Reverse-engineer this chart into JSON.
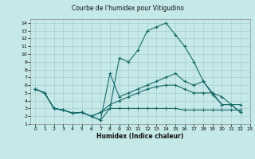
{
  "title": "Courbe de l'humidex pour Vitigudino",
  "xlabel": "Humidex (Indice chaleur)",
  "xlim": [
    -0.5,
    23
  ],
  "ylim": [
    1,
    14.5
  ],
  "background_color": "#c5e8e8",
  "grid_color": "#aacece",
  "line_color": "#1a6b6b",
  "xtick_labels": [
    "0",
    "1",
    "2",
    "3",
    "4",
    "5",
    "6",
    "7",
    "8",
    "9",
    "10",
    "11",
    "12",
    "13",
    "14",
    "15",
    "16",
    "17",
    "18",
    "19",
    "20",
    "21",
    "22",
    "23"
  ],
  "ytick_labels": [
    "1",
    "2",
    "3",
    "4",
    "5",
    "6",
    "7",
    "8",
    "9",
    "10",
    "11",
    "12",
    "13",
    "14"
  ],
  "series": [
    [
      5.5,
      5.0,
      3.0,
      2.8,
      2.4,
      2.5,
      2.0,
      1.5,
      3.0,
      9.5,
      9.0,
      10.5,
      13.0,
      13.5,
      14.0,
      12.5,
      11.0,
      9.0,
      6.5,
      5.0,
      3.5,
      3.5,
      2.5
    ],
    [
      5.5,
      5.0,
      3.0,
      2.8,
      2.4,
      2.5,
      2.0,
      1.5,
      7.5,
      4.5,
      5.0,
      5.5,
      6.0,
      6.5,
      7.0,
      7.5,
      6.5,
      6.0,
      6.5,
      4.8,
      3.5,
      3.5,
      2.5
    ],
    [
      5.5,
      5.0,
      3.0,
      2.8,
      2.4,
      2.5,
      2.0,
      2.5,
      3.5,
      4.0,
      4.5,
      5.0,
      5.5,
      5.8,
      6.0,
      6.0,
      5.5,
      5.0,
      5.0,
      5.0,
      4.5,
      3.5,
      3.5
    ],
    [
      5.5,
      5.0,
      3.0,
      2.8,
      2.4,
      2.5,
      2.0,
      2.5,
      3.0,
      3.0,
      3.0,
      3.0,
      3.0,
      3.0,
      3.0,
      3.0,
      2.8,
      2.8,
      2.8,
      2.8,
      2.8,
      2.8,
      2.8
    ]
  ]
}
